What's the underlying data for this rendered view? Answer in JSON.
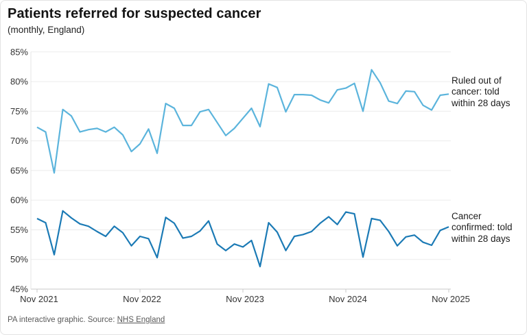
{
  "header": {
    "title": "Patients referred for suspected cancer",
    "subtitle": "(monthly, England)"
  },
  "footer": {
    "credit": "PA interactive graphic. Source: ",
    "source_link": "NHS England"
  },
  "colors": {
    "ruled_out_line": "#5bb4dc",
    "confirmed_line": "#1b7ab5",
    "grid": "#ebebeb",
    "axis": "#c9c9c9",
    "tick_text": "#333333"
  },
  "chart_data": {
    "type": "line",
    "title": "Patients referred for suspected cancer",
    "subtitle": "(monthly, England)",
    "y_unit": "%",
    "ylim": [
      45,
      85
    ],
    "y_ticks": [
      45,
      50,
      55,
      60,
      65,
      70,
      75,
      80,
      85
    ],
    "x_tick_labels": [
      "Nov 2021",
      "Nov 2022",
      "Nov 2023",
      "Nov 2024",
      "Nov 2025"
    ],
    "grid": "horizontal",
    "legend_position": "right-annotations",
    "x": [
      "2021-11",
      "2021-12",
      "2022-01",
      "2022-02",
      "2022-03",
      "2022-04",
      "2022-05",
      "2022-06",
      "2022-07",
      "2022-08",
      "2022-09",
      "2022-10",
      "2022-11",
      "2022-12",
      "2023-01",
      "2023-02",
      "2023-03",
      "2023-04",
      "2023-05",
      "2023-06",
      "2023-07",
      "2023-08",
      "2023-09",
      "2023-10",
      "2023-11",
      "2023-12",
      "2024-01",
      "2024-02",
      "2024-03",
      "2024-04",
      "2024-05",
      "2024-06",
      "2024-07",
      "2024-08",
      "2024-09",
      "2024-10",
      "2024-11",
      "2024-12",
      "2025-01",
      "2025-02",
      "2025-03",
      "2025-04",
      "2025-05",
      "2025-06",
      "2025-07",
      "2025-08",
      "2025-09",
      "2025-10",
      "2025-11"
    ],
    "series": [
      {
        "name": "Ruled out of cancer: told within 28 days",
        "label_lines": "Ruled out of\ncancer: told\nwithin 28 days",
        "color": "#5bb4dc",
        "values": [
          72.3,
          71.5,
          64.6,
          75.3,
          74.2,
          71.5,
          71.9,
          72.1,
          71.5,
          72.3,
          71.0,
          68.2,
          69.5,
          72.0,
          67.9,
          76.3,
          75.5,
          72.6,
          72.6,
          74.9,
          75.3,
          73.1,
          70.9,
          72.1,
          73.8,
          75.5,
          72.4,
          79.6,
          79.0,
          74.9,
          77.8,
          77.8,
          77.7,
          76.9,
          76.4,
          78.6,
          78.9,
          79.7,
          75.0,
          82.0,
          79.8,
          76.7,
          76.3,
          78.4,
          78.3,
          76.0,
          75.2,
          77.7,
          77.9
        ]
      },
      {
        "name": "Cancer confirmed: told within 28 days",
        "label_lines": "Cancer\nconfirmed: told\nwithin 28 days",
        "color": "#1b7ab5",
        "values": [
          56.9,
          56.2,
          50.8,
          58.2,
          57.0,
          56.0,
          55.6,
          54.7,
          53.9,
          55.6,
          54.5,
          52.3,
          53.9,
          53.5,
          50.3,
          57.1,
          56.1,
          53.6,
          53.9,
          54.8,
          56.5,
          52.6,
          51.5,
          52.6,
          52.1,
          53.2,
          48.8,
          56.2,
          54.6,
          51.5,
          53.9,
          54.2,
          54.7,
          56.1,
          57.2,
          55.9,
          58.0,
          57.7,
          50.4,
          56.9,
          56.6,
          54.7,
          52.3,
          53.8,
          54.1,
          52.9,
          52.4,
          54.9,
          55.5
        ]
      }
    ]
  }
}
